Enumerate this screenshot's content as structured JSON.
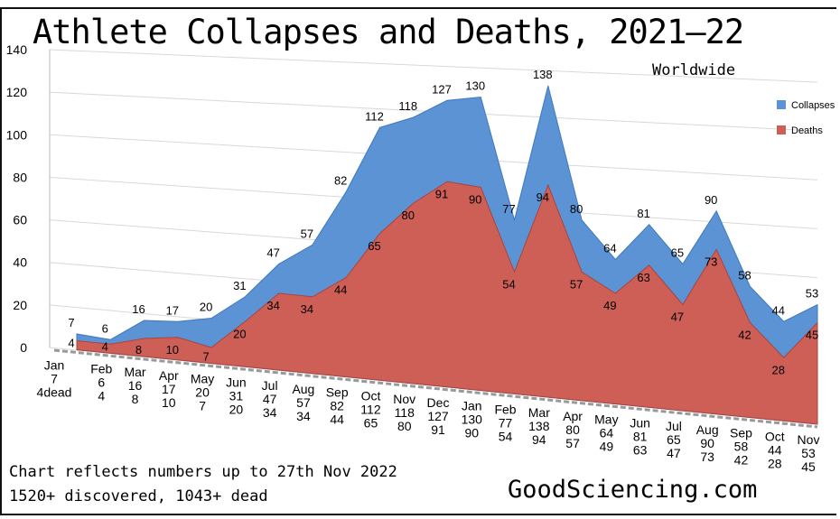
{
  "title": "Athlete Collapses and Deaths, 2021—22",
  "subtitle": "Worldwide",
  "note_lines": [
    "Chart reflects numbers up to 27th Nov 2022",
    "1520+ discovered, 1043+ dead"
  ],
  "brand": "GoodSciencing.com",
  "chart_data": {
    "type": "area",
    "title": "Athlete Collapses and Deaths, 2021—22",
    "categories": [
      "Jan",
      "Feb",
      "Mar",
      "Apr",
      "May",
      "Jun",
      "Jul",
      "Aug",
      "Sep",
      "Oct",
      "Nov",
      "Dec",
      "Jan",
      "Feb",
      "Mar",
      "Apr",
      "May",
      "Jun",
      "Jul",
      "Aug",
      "Sep",
      "Oct",
      "Nov"
    ],
    "series": [
      {
        "name": "Collapses",
        "color": "#5b93d4",
        "values": [
          7,
          6,
          16,
          17,
          20,
          31,
          47,
          57,
          82,
          112,
          118,
          127,
          130,
          77,
          138,
          80,
          64,
          81,
          65,
          90,
          58,
          44,
          53
        ]
      },
      {
        "name": "Deaths",
        "color": "#cd5f57",
        "values": [
          4,
          4,
          8,
          10,
          7,
          20,
          34,
          34,
          44,
          65,
          80,
          91,
          90,
          54,
          94,
          57,
          49,
          63,
          47,
          73,
          42,
          28,
          45
        ]
      }
    ],
    "x_tick_labels": [
      [
        "Jan",
        "7",
        "4dead"
      ],
      [
        "Feb",
        "6",
        "4"
      ],
      [
        "Mar",
        "16",
        "8"
      ],
      [
        "Apr",
        "17",
        "10"
      ],
      [
        "May",
        "20",
        "7"
      ],
      [
        "Jun",
        "31",
        "20"
      ],
      [
        "Jul",
        "47",
        "34"
      ],
      [
        "Aug",
        "57",
        "34"
      ],
      [
        "Sep",
        "82",
        "44"
      ],
      [
        "Oct",
        "112",
        "65"
      ],
      [
        "Nov",
        "118",
        "80"
      ],
      [
        "Dec",
        "127",
        "91"
      ],
      [
        "Jan",
        "130",
        "90"
      ],
      [
        "Feb",
        "77",
        "54"
      ],
      [
        "Mar",
        "138",
        "94"
      ],
      [
        "Apr",
        "80",
        "57"
      ],
      [
        "May",
        "64",
        "49"
      ],
      [
        "Jun",
        "81",
        "63"
      ],
      [
        "Jul",
        "65",
        "47"
      ],
      [
        "Aug",
        "90",
        "73"
      ],
      [
        "Sep",
        "58",
        "42"
      ],
      [
        "Oct",
        "44",
        "28"
      ],
      [
        "Nov",
        "53",
        "45"
      ]
    ],
    "y_ticks": [
      0,
      20,
      40,
      60,
      80,
      100,
      120,
      140
    ],
    "ylim": [
      0,
      140
    ],
    "grid": true,
    "legend": "right"
  }
}
